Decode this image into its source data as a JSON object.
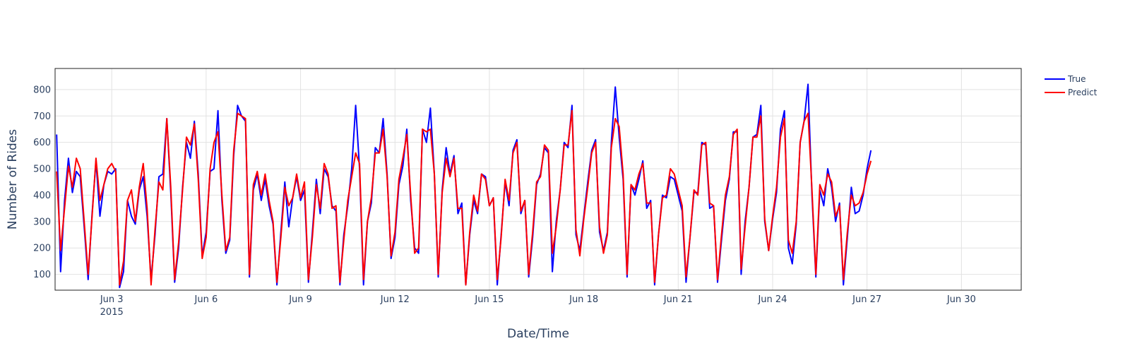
{
  "chart_data": {
    "type": "line",
    "title": "",
    "xlabel": "Date/Time",
    "ylabel": "Number of Rides",
    "x_unit": "days since 2015-06-01 00:00",
    "xlim": [
      0.2,
      30.9
    ],
    "ylim": [
      40,
      880
    ],
    "grid": true,
    "legend_position": "top-right, outside plot",
    "x_ticks": [
      {
        "value": 2,
        "label": "Jun 3",
        "sublabel": "2015"
      },
      {
        "value": 5,
        "label": "Jun 6"
      },
      {
        "value": 8,
        "label": "Jun 9"
      },
      {
        "value": 11,
        "label": "Jun 12"
      },
      {
        "value": 14,
        "label": "Jun 15"
      },
      {
        "value": 17,
        "label": "Jun 18"
      },
      {
        "value": 20,
        "label": "Jun 21"
      },
      {
        "value": 23,
        "label": "Jun 24"
      },
      {
        "value": 26,
        "label": "Jun 27"
      },
      {
        "value": 29,
        "label": "Jun 30"
      }
    ],
    "y_ticks": [
      100,
      200,
      300,
      400,
      500,
      600,
      700,
      800
    ],
    "series": [
      {
        "name": "True",
        "color": "#0000ff",
        "x_step_days": 0.125,
        "x_start": 0.25,
        "values": [
          630,
          110,
          380,
          540,
          410,
          490,
          470,
          280,
          80,
          330,
          530,
          320,
          440,
          490,
          480,
          500,
          50,
          110,
          380,
          320,
          290,
          420,
          470,
          320,
          80,
          250,
          470,
          480,
          690,
          410,
          70,
          200,
          430,
          600,
          540,
          680,
          480,
          170,
          260,
          490,
          500,
          720,
          380,
          180,
          230,
          550,
          740,
          700,
          680,
          90,
          420,
          480,
          380,
          460,
          360,
          290,
          60,
          260,
          450,
          280,
          390,
          470,
          380,
          420,
          70,
          260,
          460,
          330,
          500,
          470,
          360,
          340,
          60,
          250,
          360,
          500,
          740,
          500,
          60,
          300,
          370,
          580,
          560,
          690,
          480,
          160,
          240,
          440,
          510,
          650,
          380,
          200,
          180,
          650,
          600,
          730,
          480,
          90,
          420,
          580,
          480,
          550,
          330,
          370,
          60,
          250,
          380,
          330,
          480,
          470,
          360,
          390,
          60,
          250,
          450,
          360,
          570,
          610,
          330,
          380,
          90,
          240,
          440,
          480,
          580,
          560,
          110,
          300,
          420,
          600,
          580,
          740,
          250,
          190,
          320,
          450,
          570,
          610,
          260,
          190,
          260,
          600,
          810,
          620,
          460,
          90,
          440,
          400,
          460,
          530,
          350,
          380,
          60,
          250,
          400,
          390,
          470,
          460,
          400,
          340,
          70,
          240,
          410,
          410,
          600,
          590,
          350,
          360,
          70,
          230,
          380,
          460,
          640,
          640,
          100,
          300,
          430,
          620,
          630,
          740,
          300,
          190,
          310,
          410,
          650,
          720,
          200,
          140,
          290,
          600,
          680,
          820,
          400,
          90,
          420,
          360,
          500,
          430,
          300,
          370,
          60,
          240,
          430,
          330,
          340,
          400,
          500,
          570
        ]
      },
      {
        "name": "Predict",
        "color": "#ff0000",
        "x_step_days": 0.125,
        "x_start": 0.25,
        "values": [
          490,
          190,
          350,
          510,
          430,
          540,
          500,
          300,
          100,
          320,
          540,
          380,
          440,
          500,
          520,
          490,
          60,
          150,
          380,
          420,
          300,
          430,
          520,
          350,
          60,
          270,
          450,
          420,
          690,
          430,
          80,
          220,
          420,
          620,
          590,
          670,
          460,
          160,
          240,
          500,
          600,
          640,
          400,
          190,
          240,
          570,
          710,
          700,
          690,
          100,
          440,
          490,
          400,
          480,
          380,
          300,
          70,
          240,
          430,
          360,
          390,
          480,
          390,
          450,
          80,
          240,
          440,
          350,
          520,
          480,
          350,
          360,
          70,
          230,
          380,
          470,
          560,
          520,
          80,
          300,
          390,
          560,
          560,
          650,
          470,
          170,
          260,
          460,
          540,
          630,
          400,
          180,
          200,
          650,
          640,
          650,
          480,
          100,
          410,
          540,
          470,
          540,
          350,
          350,
          60,
          260,
          400,
          340,
          480,
          460,
          360,
          390,
          80,
          240,
          460,
          380,
          560,
          600,
          340,
          380,
          100,
          260,
          450,
          470,
          590,
          570,
          180,
          280,
          420,
          590,
          590,
          720,
          270,
          170,
          310,
          430,
          560,
          600,
          280,
          180,
          250,
          580,
          690,
          660,
          480,
          100,
          440,
          420,
          480,
          520,
          370,
          370,
          70,
          250,
          390,
          400,
          500,
          480,
          420,
          360,
          90,
          240,
          420,
          400,
          590,
          600,
          370,
          360,
          80,
          250,
          400,
          470,
          630,
          650,
          120,
          280,
          430,
          620,
          620,
          700,
          310,
          190,
          320,
          430,
          620,
          690,
          230,
          180,
          300,
          600,
          680,
          710,
          420,
          100,
          440,
          400,
          480,
          450,
          320,
          360,
          80,
          260,
          400,
          360,
          370,
          410,
          480,
          530
        ]
      }
    ]
  }
}
